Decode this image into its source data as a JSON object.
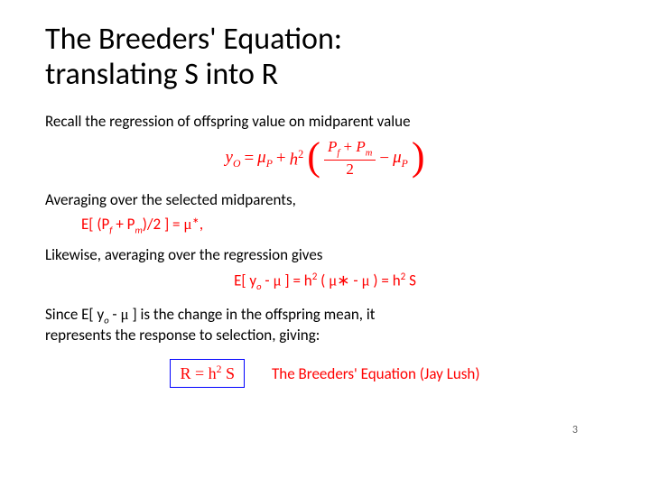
{
  "colors": {
    "text": "#000000",
    "red": "#ff0000",
    "box_border": "#0000ff",
    "background": "#ffffff"
  },
  "title_line1": "The Breeders' Equation:",
  "title_line2": "translating S into R",
  "line1": "Recall the regression of offspring value on midparent value",
  "eq1": {
    "lhs_y": "y",
    "lhs_sub": "O",
    "eq": " = ",
    "mu": "μ",
    "mu_sub": "P",
    "plus": " + ",
    "h": "h",
    "h_sup": "2",
    "lparen": "(",
    "frac_num_pf": "P",
    "frac_num_pf_sub": "f",
    "frac_num_plus": " + ",
    "frac_num_pm": "P",
    "frac_num_pm_sub": "m",
    "frac_den": "2",
    "minus": " − ",
    "mu2": "μ",
    "mu2_sub": "P",
    "rparen": ")"
  },
  "line2": "Averaging over the selected midparents,",
  "eq2": {
    "pre": "E[ (P",
    "sub_f": "f",
    "mid1": " + P",
    "sub_m": "m",
    "mid2": ")/2 ] = ",
    "mu": "μ",
    "post": "*,"
  },
  "line3": "Likewise, averaging over the regression gives",
  "eq3": {
    "pre": "E[ y",
    "sub_o": "o",
    "mid1": " - ",
    "mu1": "μ",
    "mid2": " ] = h",
    "sup1": "2",
    "mid3": " ( ",
    "mu2": "μ",
    "mid4": "∗ - ",
    "mu3": "μ",
    "mid5": " ) = h",
    "sup2": "2",
    "mid6": " S"
  },
  "line4a": "Since E[ y",
  "line4_sub": "o",
  "line4b": " - ",
  "line4_mu": "μ",
  "line4c": " ] is the change in the offspring mean, it",
  "line4d": "represents the response to selection, giving:",
  "final": {
    "R": "R = h",
    "sup": "2",
    "S": " S",
    "caption": "The Breeders' Equation (Jay Lush)"
  },
  "page_number": "3"
}
